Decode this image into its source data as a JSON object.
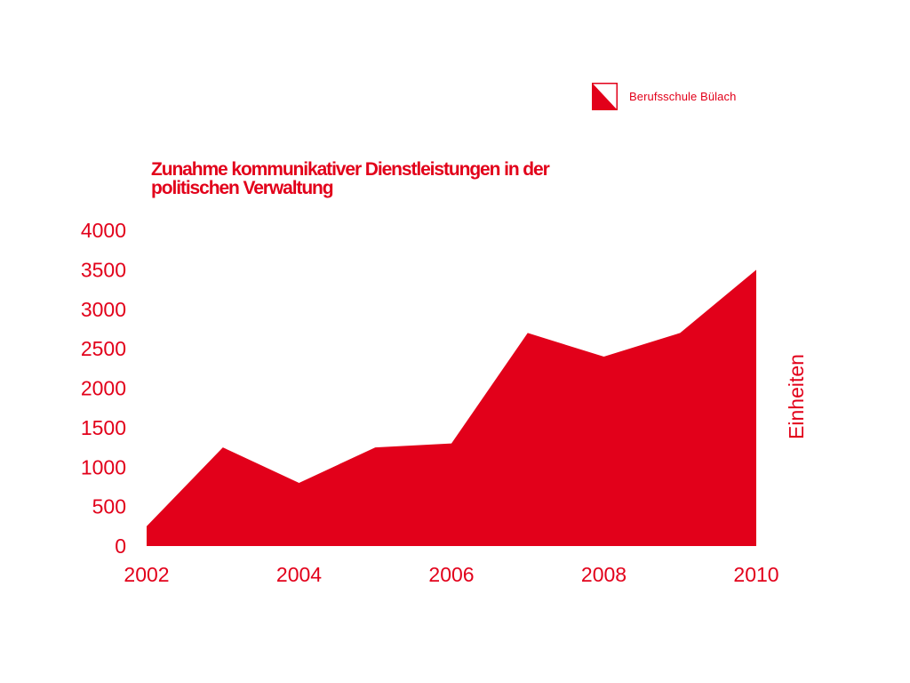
{
  "logo": {
    "text": "Berufsschule Bülach",
    "color": "#e2001a"
  },
  "chart_data": {
    "type": "area",
    "title": [
      "Zunahme kommunikativer Dienstleistungen in der",
      "politischen Verwaltung"
    ],
    "ylabel": "Einheiten",
    "xlabel": "",
    "x": [
      2002,
      2003,
      2004,
      2005,
      2006,
      2007,
      2008,
      2009,
      2010
    ],
    "values": [
      250,
      1250,
      800,
      1250,
      1300,
      2700,
      2400,
      2700,
      3500
    ],
    "xlim": [
      2002,
      2010
    ],
    "ylim": [
      0,
      4000
    ],
    "x_ticks": [
      "2002",
      "2004",
      "2006",
      "2008",
      "2010"
    ],
    "y_ticks": [
      "0",
      "500",
      "1000",
      "1500",
      "2000",
      "2500",
      "3000",
      "3500",
      "4000"
    ],
    "grid": false,
    "legend": "none",
    "color": "#e2001a"
  }
}
